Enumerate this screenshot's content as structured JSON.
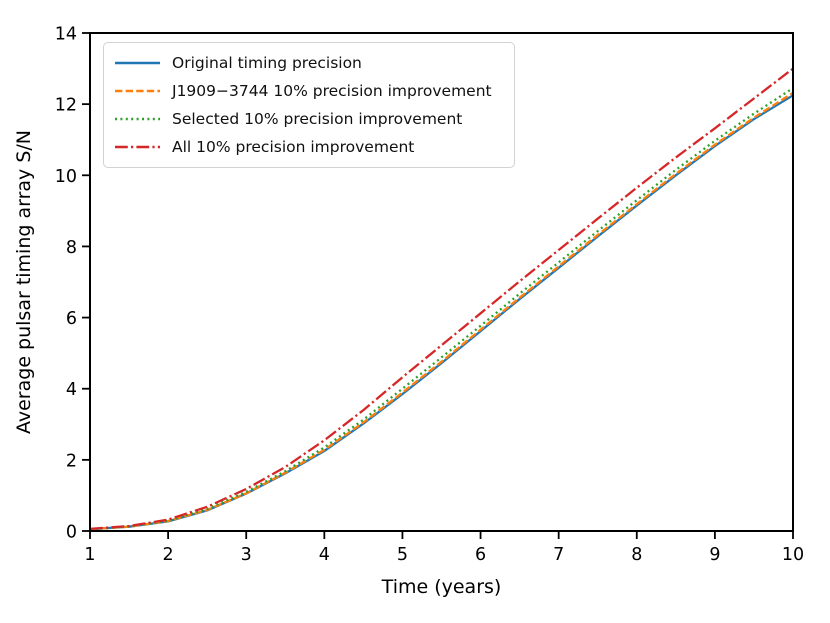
{
  "chart_data": {
    "type": "line",
    "title": "",
    "xlabel": "Time (years)",
    "ylabel": "Average pulsar timing array S/N",
    "xlim": [
      1,
      10
    ],
    "ylim": [
      0,
      14
    ],
    "x_ticks": [
      1,
      2,
      3,
      4,
      5,
      6,
      7,
      8,
      9,
      10
    ],
    "y_ticks": [
      0,
      2,
      4,
      6,
      8,
      10,
      12,
      14
    ],
    "grid": false,
    "legend_position": "upper left",
    "x": [
      1,
      1.5,
      2,
      2.5,
      3,
      3.5,
      4,
      4.5,
      5,
      5.5,
      6,
      6.5,
      7,
      7.5,
      8,
      8.5,
      9,
      9.5,
      10
    ],
    "series": [
      {
        "name": "Original timing precision",
        "color": "#1f77b4",
        "style": "solid",
        "values": [
          0.05,
          0.12,
          0.27,
          0.58,
          1.05,
          1.62,
          2.25,
          3.02,
          3.85,
          4.72,
          5.62,
          6.52,
          7.4,
          8.28,
          9.15,
          10.0,
          10.82,
          11.58,
          12.25
        ]
      },
      {
        "name": "J1909−3744 10% precision improvement",
        "color": "#ff7f0e",
        "style": "dashed",
        "values": [
          0.05,
          0.12,
          0.28,
          0.59,
          1.06,
          1.64,
          2.28,
          3.05,
          3.89,
          4.76,
          5.66,
          6.56,
          7.44,
          8.32,
          9.19,
          10.04,
          10.86,
          11.62,
          12.32
        ]
      },
      {
        "name": "Selected 10% precision improvement",
        "color": "#2ca02c",
        "style": "dotted",
        "values": [
          0.05,
          0.13,
          0.29,
          0.62,
          1.1,
          1.68,
          2.35,
          3.13,
          4.0,
          4.88,
          5.77,
          6.67,
          7.55,
          8.43,
          9.3,
          10.15,
          10.97,
          11.73,
          12.45
        ]
      },
      {
        "name": "All 10% precision improvement",
        "color": "#d62728",
        "style": "dashdot",
        "values": [
          0.06,
          0.14,
          0.32,
          0.68,
          1.18,
          1.8,
          2.55,
          3.4,
          4.32,
          5.22,
          6.12,
          7.02,
          7.9,
          8.78,
          9.65,
          10.5,
          11.32,
          12.16,
          13.0
        ]
      }
    ]
  },
  "colors": {
    "axis": "#000000",
    "legend_border": "#d2d2d2",
    "background": "#ffffff"
  }
}
